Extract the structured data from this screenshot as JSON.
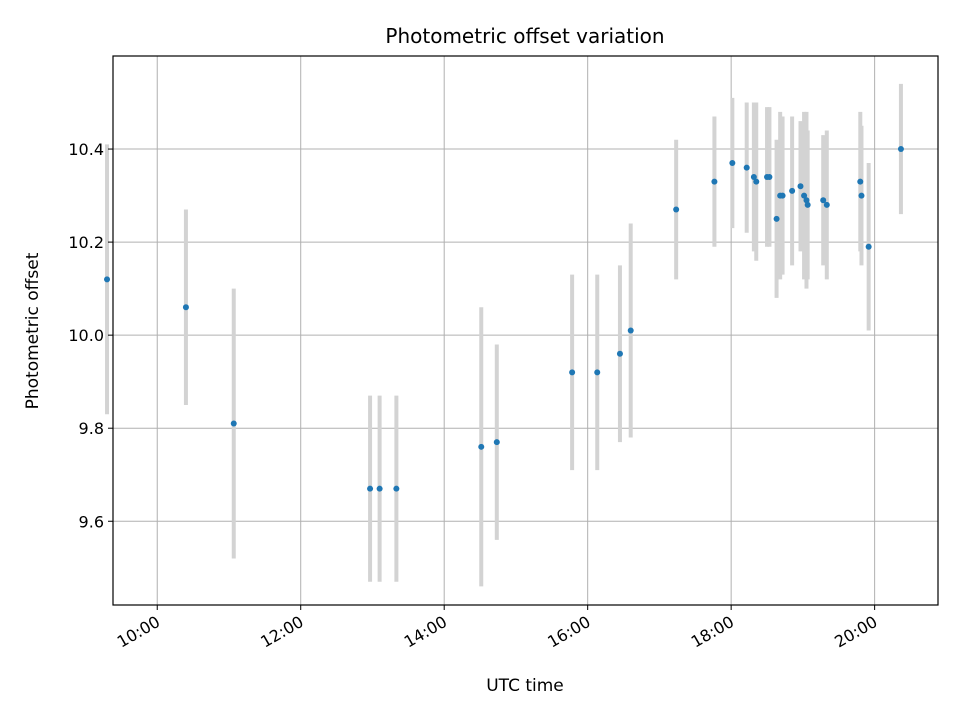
{
  "chart_data": {
    "type": "scatter",
    "title": "Photometric offset variation",
    "xlabel": "UTC time",
    "ylabel": "Photometric offset",
    "x_format": "HH:MM",
    "xlim": [
      "09:23",
      "20:53"
    ],
    "ylim": [
      9.42,
      10.6
    ],
    "xticks": [
      "10:00",
      "12:00",
      "14:00",
      "16:00",
      "18:00",
      "20:00"
    ],
    "yticks": [
      9.6,
      9.8,
      10.0,
      10.2,
      10.4
    ],
    "grid": true,
    "point_color": "#1f77b4",
    "errorbar_color": "#d3d3d3",
    "points": [
      {
        "x": "09:18",
        "y": 10.12,
        "err": 0.29
      },
      {
        "x": "10:24",
        "y": 10.06,
        "err": 0.21
      },
      {
        "x": "11:04",
        "y": 9.81,
        "err": 0.29
      },
      {
        "x": "12:58",
        "y": 9.67,
        "err": 0.2
      },
      {
        "x": "13:06",
        "y": 9.67,
        "err": 0.2
      },
      {
        "x": "13:20",
        "y": 9.67,
        "err": 0.2
      },
      {
        "x": "14:31",
        "y": 9.76,
        "err": 0.3
      },
      {
        "x": "14:44",
        "y": 9.77,
        "err": 0.21
      },
      {
        "x": "15:47",
        "y": 9.92,
        "err": 0.21
      },
      {
        "x": "16:08",
        "y": 9.92,
        "err": 0.21
      },
      {
        "x": "16:27",
        "y": 9.96,
        "err": 0.19
      },
      {
        "x": "16:36",
        "y": 10.01,
        "err": 0.23
      },
      {
        "x": "17:14",
        "y": 10.27,
        "err": 0.15
      },
      {
        "x": "17:46",
        "y": 10.33,
        "err": 0.14
      },
      {
        "x": "18:01",
        "y": 10.37,
        "err": 0.14
      },
      {
        "x": "18:13",
        "y": 10.36,
        "err": 0.14
      },
      {
        "x": "18:19",
        "y": 10.34,
        "err": 0.16
      },
      {
        "x": "18:21",
        "y": 10.33,
        "err": 0.17
      },
      {
        "x": "18:30",
        "y": 10.34,
        "err": 0.15
      },
      {
        "x": "18:32",
        "y": 10.34,
        "err": 0.15
      },
      {
        "x": "18:38",
        "y": 10.25,
        "err": 0.17
      },
      {
        "x": "18:41",
        "y": 10.3,
        "err": 0.18
      },
      {
        "x": "18:43",
        "y": 10.3,
        "err": 0.17
      },
      {
        "x": "18:51",
        "y": 10.31,
        "err": 0.16
      },
      {
        "x": "18:58",
        "y": 10.32,
        "err": 0.14
      },
      {
        "x": "19:01",
        "y": 10.3,
        "err": 0.18
      },
      {
        "x": "19:03",
        "y": 10.29,
        "err": 0.19
      },
      {
        "x": "19:04",
        "y": 10.28,
        "err": 0.16
      },
      {
        "x": "19:17",
        "y": 10.29,
        "err": 0.14
      },
      {
        "x": "19:20",
        "y": 10.28,
        "err": 0.16
      },
      {
        "x": "19:48",
        "y": 10.33,
        "err": 0.15
      },
      {
        "x": "19:49",
        "y": 10.3,
        "err": 0.15
      },
      {
        "x": "19:55",
        "y": 10.19,
        "err": 0.18
      },
      {
        "x": "20:22",
        "y": 10.4,
        "err": 0.14
      }
    ]
  }
}
